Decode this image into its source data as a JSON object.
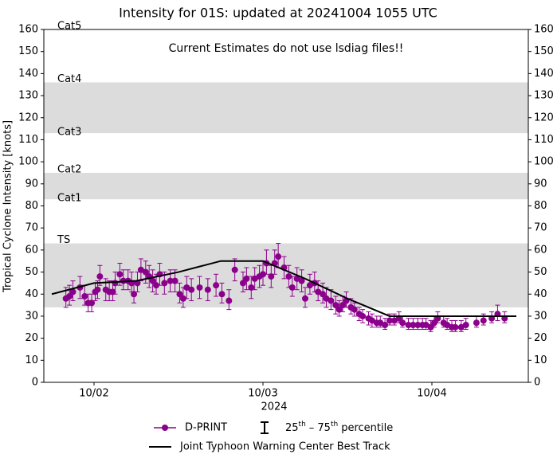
{
  "chart_data": {
    "type": "errorbar-line",
    "title": "Intensity for 01S: updated at 20241004 1055 UTC",
    "annotation": "Current Estimates do not use lsdiag files!!",
    "ylabel": "Tropical Cyclone Intensity [knots]",
    "xlabel": "2024",
    "xlim": [
      "2024-10-01T16:52",
      "2024-10-04T13:42"
    ],
    "xticks": [
      {
        "value": "2024-10-02T00:00",
        "label": "10/02"
      },
      {
        "value": "2024-10-03T00:00",
        "label": "10/03"
      },
      {
        "value": "2024-10-04T00:00",
        "label": "10/04"
      }
    ],
    "ylim": [
      0,
      160
    ],
    "yticks": [
      0,
      10,
      20,
      30,
      40,
      50,
      60,
      70,
      80,
      90,
      100,
      110,
      120,
      130,
      140,
      150,
      160
    ],
    "y2lim": [
      0,
      160
    ],
    "y2ticks": [
      0,
      10,
      20,
      30,
      40,
      50,
      60,
      70,
      80,
      90,
      100,
      110,
      120,
      130,
      140,
      150,
      160
    ],
    "intensity_categories": [
      {
        "label": "Cat5",
        "range": [
          137,
          160
        ],
        "shaded": false
      },
      {
        "label": "Cat4",
        "range": [
          113,
          136
        ],
        "shaded": true
      },
      {
        "label": "Cat3",
        "range": [
          96,
          112
        ],
        "shaded": false
      },
      {
        "label": "Cat2",
        "range": [
          83,
          95
        ],
        "shaded": true
      },
      {
        "label": "Cat1",
        "range": [
          64,
          82
        ],
        "shaded": false
      },
      {
        "label": "TS",
        "range": [
          34,
          63
        ],
        "shaded": true
      }
    ],
    "band_color": "#dcdcdc",
    "errorbar_label": [
      "25",
      "th",
      "– 75",
      "th",
      "percentile"
    ],
    "series": [
      {
        "name": "D-PRINT",
        "color": "#8b008b",
        "marker": "circle",
        "x": [
          "2024-10-01T20:00",
          "2024-10-01T20:30",
          "2024-10-01T21:00",
          "2024-10-01T22:00",
          "2024-10-01T22:40",
          "2024-10-01T23:10",
          "2024-10-01T23:40",
          "2024-10-02T00:10",
          "2024-10-02T00:30",
          "2024-10-02T00:50",
          "2024-10-02T01:40",
          "2024-10-02T02:10",
          "2024-10-02T02:40",
          "2024-10-02T03:00",
          "2024-10-02T03:40",
          "2024-10-02T04:10",
          "2024-10-02T04:50",
          "2024-10-02T05:20",
          "2024-10-02T05:40",
          "2024-10-02T06:10",
          "2024-10-02T06:40",
          "2024-10-02T07:20",
          "2024-10-02T07:50",
          "2024-10-02T08:20",
          "2024-10-02T08:50",
          "2024-10-02T09:20",
          "2024-10-02T10:00",
          "2024-10-02T10:50",
          "2024-10-02T11:30",
          "2024-10-02T12:10",
          "2024-10-02T12:40",
          "2024-10-02T13:10",
          "2024-10-02T13:50",
          "2024-10-02T15:00",
          "2024-10-02T16:10",
          "2024-10-02T17:20",
          "2024-10-02T18:10",
          "2024-10-02T19:10",
          "2024-10-02T20:00",
          "2024-10-02T21:10",
          "2024-10-02T21:40",
          "2024-10-02T22:20",
          "2024-10-02T22:50",
          "2024-10-02T23:30",
          "2024-10-03T00:00",
          "2024-10-03T00:30",
          "2024-10-03T01:10",
          "2024-10-03T01:40",
          "2024-10-03T02:10",
          "2024-10-03T03:00",
          "2024-10-03T03:40",
          "2024-10-03T04:10",
          "2024-10-03T04:50",
          "2024-10-03T05:30",
          "2024-10-03T06:00",
          "2024-10-03T06:40",
          "2024-10-03T07:20",
          "2024-10-03T07:50",
          "2024-10-03T08:30",
          "2024-10-03T09:00",
          "2024-10-03T09:40",
          "2024-10-03T10:20",
          "2024-10-03T10:50",
          "2024-10-03T11:20",
          "2024-10-03T11:50",
          "2024-10-03T12:30",
          "2024-10-03T13:00",
          "2024-10-03T13:40",
          "2024-10-03T14:10",
          "2024-10-03T15:00",
          "2024-10-03T15:30",
          "2024-10-03T16:10",
          "2024-10-03T16:40",
          "2024-10-03T17:20",
          "2024-10-03T18:00",
          "2024-10-03T18:40",
          "2024-10-03T19:20",
          "2024-10-03T19:50",
          "2024-10-03T20:40",
          "2024-10-03T21:20",
          "2024-10-03T22:00",
          "2024-10-03T22:40",
          "2024-10-03T23:10",
          "2024-10-03T23:50",
          "2024-10-04T00:20",
          "2024-10-04T00:50",
          "2024-10-04T01:40",
          "2024-10-04T02:10",
          "2024-10-04T02:50",
          "2024-10-04T03:20",
          "2024-10-04T04:10",
          "2024-10-04T04:50",
          "2024-10-04T06:20",
          "2024-10-04T07:20",
          "2024-10-04T08:30",
          "2024-10-04T09:20",
          "2024-10-04T10:20"
        ],
        "values": [
          38,
          39,
          41,
          43,
          39,
          36,
          36,
          41,
          42,
          48,
          42,
          41,
          41,
          45,
          49,
          46,
          46,
          45,
          40,
          45,
          51,
          50,
          48,
          46,
          44,
          49,
          45,
          46,
          46,
          40,
          38,
          43,
          42,
          43,
          42,
          44,
          40,
          37,
          51,
          45,
          47,
          43,
          47,
          48,
          49,
          54,
          48,
          54,
          57,
          52,
          48,
          43,
          47,
          46,
          38,
          44,
          45,
          41,
          40,
          38,
          37,
          35,
          33,
          35,
          37,
          34,
          33,
          31,
          30,
          29,
          28,
          27,
          27,
          26,
          28,
          28,
          29,
          27,
          26,
          26,
          26,
          26,
          26,
          25,
          27,
          29,
          27,
          26,
          25,
          25,
          25,
          26,
          27,
          28,
          29,
          31,
          29
        ],
        "low": [
          34,
          35,
          37,
          38,
          35,
          32,
          32,
          37,
          38,
          44,
          37,
          37,
          37,
          40,
          44,
          42,
          42,
          41,
          36,
          41,
          46,
          45,
          43,
          41,
          40,
          44,
          40,
          41,
          41,
          36,
          34,
          38,
          37,
          38,
          37,
          39,
          36,
          33,
          46,
          41,
          42,
          38,
          42,
          43,
          44,
          49,
          43,
          49,
          52,
          47,
          43,
          39,
          42,
          41,
          34,
          40,
          41,
          37,
          36,
          34,
          33,
          31,
          30,
          32,
          34,
          31,
          30,
          28,
          27,
          26,
          25,
          25,
          25,
          24,
          26,
          26,
          27,
          25,
          24,
          24,
          24,
          24,
          24,
          23,
          25,
          27,
          25,
          24,
          23,
          23,
          23,
          24,
          25,
          26,
          27,
          28,
          27
        ],
        "high": [
          43,
          44,
          46,
          48,
          44,
          40,
          40,
          45,
          46,
          53,
          47,
          46,
          46,
          50,
          54,
          51,
          51,
          50,
          45,
          50,
          56,
          55,
          53,
          51,
          49,
          54,
          50,
          51,
          51,
          45,
          43,
          48,
          47,
          48,
          47,
          49,
          45,
          42,
          56,
          50,
          52,
          48,
          52,
          53,
          55,
          60,
          53,
          60,
          63,
          57,
          53,
          48,
          52,
          51,
          43,
          49,
          50,
          46,
          45,
          43,
          42,
          39,
          37,
          39,
          41,
          38,
          36,
          34,
          33,
          32,
          31,
          30,
          30,
          29,
          31,
          31,
          32,
          30,
          29,
          29,
          29,
          29,
          29,
          28,
          30,
          32,
          30,
          29,
          28,
          28,
          28,
          29,
          30,
          31,
          32,
          35,
          32
        ]
      },
      {
        "name": "Joint Typhoon Warning Center Best Track",
        "color": "#000000",
        "marker": "none",
        "x": [
          "2024-10-01T18:00",
          "2024-10-02T00:00",
          "2024-10-02T06:00",
          "2024-10-02T12:00",
          "2024-10-02T18:00",
          "2024-10-03T00:00",
          "2024-10-03T06:00",
          "2024-10-03T12:00",
          "2024-10-03T18:00",
          "2024-10-04T00:00",
          "2024-10-04T06:00",
          "2024-10-04T12:00"
        ],
        "values": [
          40,
          45,
          46,
          50,
          55,
          55,
          47,
          38,
          30,
          30,
          30,
          30
        ]
      }
    ]
  }
}
